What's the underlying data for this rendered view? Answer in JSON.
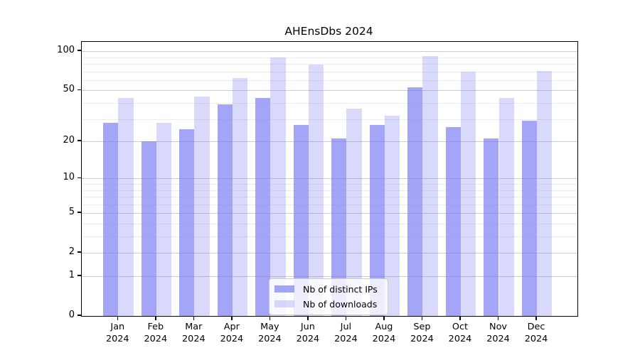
{
  "chart_data": {
    "type": "bar",
    "title": "AHEnsDbs 2024",
    "categories": [
      "Jan",
      "Feb",
      "Mar",
      "Apr",
      "May",
      "Jun",
      "Jul",
      "Aug",
      "Sep",
      "Oct",
      "Nov",
      "Dec"
    ],
    "category_year": "2024",
    "series": [
      {
        "key": "distinct-ips",
        "name": "Nb of distinct IPs",
        "values": [
          28,
          20,
          25,
          39,
          44,
          27,
          21,
          27,
          53,
          26,
          21,
          29
        ]
      },
      {
        "key": "downloads",
        "name": "Nb of downloads",
        "values": [
          44,
          28,
          45,
          62,
          90,
          79,
          36,
          32,
          92,
          70,
          44,
          71
        ]
      }
    ],
    "xlabel": "",
    "ylabel": "",
    "yscale": "log1p",
    "ylim": [
      0,
      118
    ],
    "yticks": [
      0,
      1,
      2,
      5,
      10,
      20,
      50,
      100
    ],
    "yticks_minor": [
      3,
      4,
      6,
      7,
      8,
      9,
      30,
      40,
      60,
      70,
      80,
      90
    ],
    "grid": true,
    "legend_position": "lower-center",
    "colors": {
      "distinct_ips_bar": "rgba(118,118,245,0.66)",
      "downloads_bar": "rgba(118,118,245,0.28)",
      "grid_major": "#cccccc",
      "grid_minor": "#ececec",
      "spine": "#000000",
      "background": "#ffffff"
    }
  }
}
